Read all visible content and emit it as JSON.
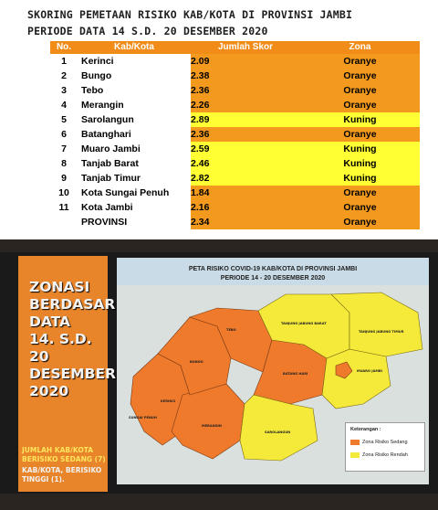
{
  "header": {
    "title_line1": "SKORING PEMETAAN RISIKO KAB/KOTA DI PROVINSI JAMBI",
    "title_line2": "PERIODE  DATA 14 S.D. 20 DESEMBER 2020"
  },
  "table": {
    "columns": [
      "No.",
      "Kab/Kota",
      "Jumlah Skor",
      "Zona"
    ],
    "rows": [
      {
        "no": "1",
        "name": "Kerinci",
        "score": "2.09",
        "zone": "Oranye"
      },
      {
        "no": "2",
        "name": "Bungo",
        "score": "2.38",
        "zone": "Oranye"
      },
      {
        "no": "3",
        "name": "Tebo",
        "score": "2.36",
        "zone": "Oranye"
      },
      {
        "no": "4",
        "name": "Merangin",
        "score": "2.26",
        "zone": "Oranye"
      },
      {
        "no": "5",
        "name": "Sarolangun",
        "score": "2.89",
        "zone": "Kuning"
      },
      {
        "no": "6",
        "name": "Batanghari",
        "score": "2.36",
        "zone": "Oranye"
      },
      {
        "no": "7",
        "name": "Muaro Jambi",
        "score": "2.59",
        "zone": "Kuning"
      },
      {
        "no": "8",
        "name": "Tanjab Barat",
        "score": "2.46",
        "zone": "Kuning"
      },
      {
        "no": "9",
        "name": "Tanjab Timur",
        "score": "2.82",
        "zone": "Kuning"
      },
      {
        "no": "10",
        "name": "Kota Sungai Penuh",
        "score": "1.84",
        "zone": "Oranye"
      },
      {
        "no": "11",
        "name": "Kota Jambi",
        "score": "2.16",
        "zone": "Oranye"
      },
      {
        "no": "",
        "name": "PROVINSI",
        "score": "2.34",
        "zone": "Oranye"
      }
    ]
  },
  "colors": {
    "oranye": "#f39a1e",
    "kuning": "#ffff33",
    "map_orange": "#f07a2c",
    "map_yellow": "#f5ea3a"
  },
  "left_panel": {
    "heading_lines": [
      "ZONASI",
      "BERDASAR",
      "DATA",
      "14. S.D. 20",
      "DESEMBER",
      "2020"
    ],
    "note1": "JUMLAH KAB/KOTA BERISIKO SEDANG (7)",
    "note2": "KAB/KOTA, BERISIKO TINGGI (1)."
  },
  "map": {
    "title_line1": "PETA RISIKO COVID-19 KAB/KOTA DI PROVINSI JAMBI",
    "title_line2": "PERIODE 14 - 20 DESEMBER 2020",
    "labels": {
      "tanjung_barat": "TANJUNG JABUNG BARAT",
      "tanjung_timur": "TANJUNG JABUNG TIMUR",
      "tebo": "TEBO",
      "bungo": "BUNGO",
      "muaro_jambi": "MUARO JAMBI",
      "batang_hari": "BATANG HARI",
      "kerinci": "KERINCI",
      "sungai_penuh": "SUNGAI PENUH",
      "merangin": "MERANGIN",
      "sarolangun": "SAROLANGUN"
    },
    "legend": {
      "title": "Keterangan :",
      "items": [
        {
          "label": "Zona Risiko Sedang",
          "color": "#f07a2c"
        },
        {
          "label": "Zona Risiko Rendah",
          "color": "#f5ea3a"
        }
      ]
    }
  }
}
